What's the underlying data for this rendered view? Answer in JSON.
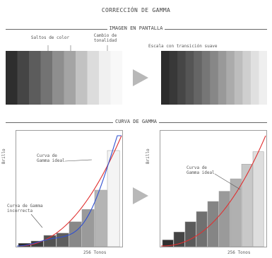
{
  "title": "CORRECCIÓN DE GAMMA",
  "section_screen": "IMAGEN EN PANTALLA",
  "section_curve": "CURVA DE GAMMA",
  "labels": {
    "color_jumps": "Saltos de color",
    "tonal_change": "Cambio de tonalidad",
    "smooth_transition": "Escala con transición suave",
    "ideal_curve_left": "Curva de Gamma ideal",
    "incorrect_curve": "Curva de Gamma incorrecta",
    "ideal_curve_right": "Curva de Gamma ideal",
    "y_axis_left": "Brillo",
    "y_axis_right": "Brillo",
    "x_axis_left": "256 Tonos",
    "x_axis_right": "256 Tonos"
  },
  "colors": {
    "ideal_curve": "#e03030",
    "incorrect_curve": "#3050d0",
    "arrow": "#b8b8b8"
  },
  "bars_left": [
    {
      "value": 0.03,
      "tone": "#2a2a2a"
    },
    {
      "value": 0.05,
      "tone": "#3c3c3c"
    },
    {
      "value": 0.1,
      "tone": "#525252"
    },
    {
      "value": 0.12,
      "tone": "#5e5e5e"
    },
    {
      "value": 0.22,
      "tone": "#888888"
    },
    {
      "value": 0.33,
      "tone": "#9a9a9a"
    },
    {
      "value": 0.5,
      "tone": "#b4b4b4"
    },
    {
      "value": 0.85,
      "tone": "#f4f4f4"
    }
  ],
  "bars_right": [
    {
      "value": 0.06,
      "tone": "#303030"
    },
    {
      "value": 0.13,
      "tone": "#444444"
    },
    {
      "value": 0.22,
      "tone": "#5a5a5a"
    },
    {
      "value": 0.31,
      "tone": "#707070"
    },
    {
      "value": 0.4,
      "tone": "#858585"
    },
    {
      "value": 0.49,
      "tone": "#9a9a9a"
    },
    {
      "value": 0.6,
      "tone": "#b0b0b0"
    },
    {
      "value": 0.73,
      "tone": "#c8c8c8"
    },
    {
      "value": 0.84,
      "tone": "#dedede"
    }
  ],
  "gradient_left": [
    "#2e2e2e",
    "#454545",
    "#5c5c5c",
    "#737373",
    "#8e8e8e",
    "#a4a4a4",
    "#c2c2c2",
    "#dcdcdc",
    "#f0f0f0",
    "#f8f8f8"
  ],
  "gradient_right": [
    "#2c2c2c",
    "#383838",
    "#464646",
    "#555555",
    "#656565",
    "#767676",
    "#878787",
    "#999999",
    "#ababab",
    "#bdbdbd",
    "#cfcfcf",
    "#e0e0e0",
    "#efefef"
  ]
}
